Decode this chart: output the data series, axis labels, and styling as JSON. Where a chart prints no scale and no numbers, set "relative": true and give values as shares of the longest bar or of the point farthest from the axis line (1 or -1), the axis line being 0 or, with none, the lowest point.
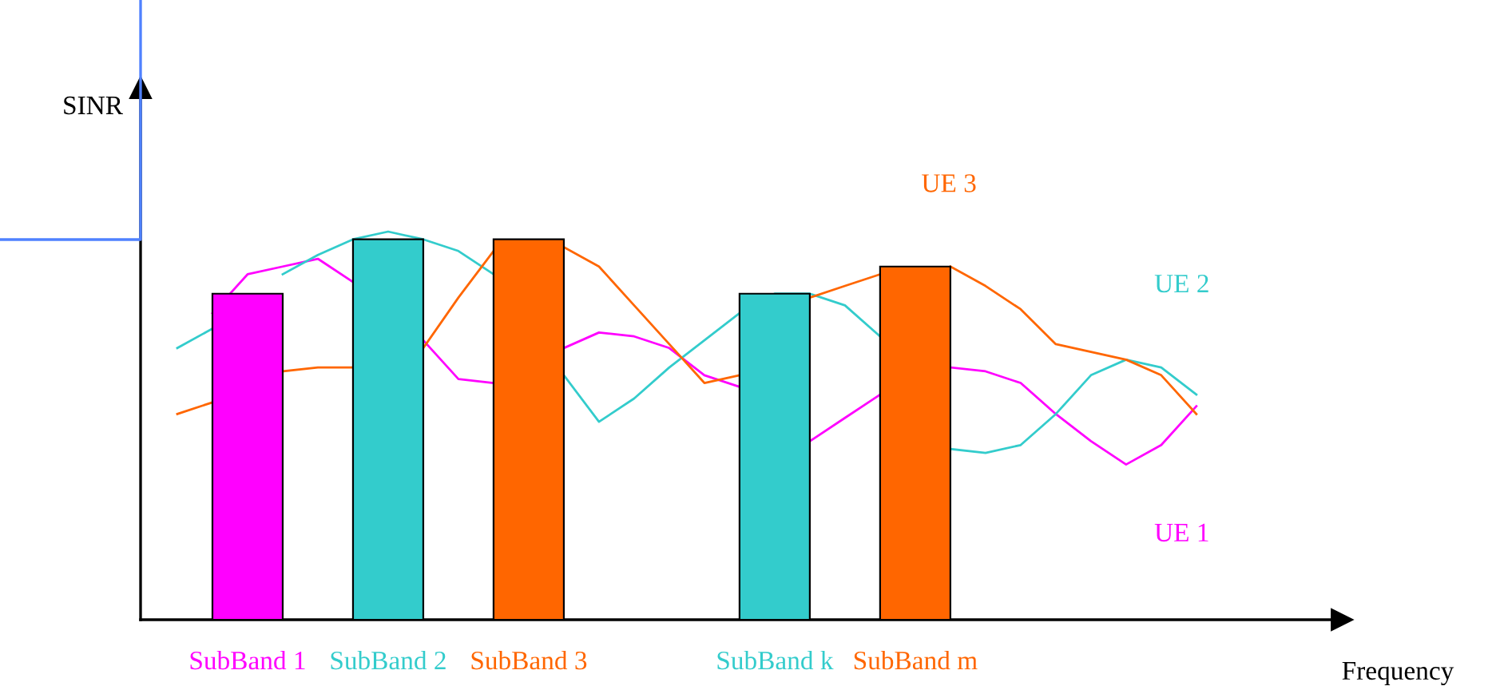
{
  "chart_data": {
    "type": "bar",
    "relative": true,
    "xlabel": "Frequency",
    "ylabel": "SINR",
    "categories": [
      null,
      null,
      "SubBand 1",
      null,
      null,
      null,
      "SubBand 2",
      null,
      null,
      null,
      "SubBand 3",
      null,
      null,
      null,
      null,
      null,
      null,
      "SubBand k",
      null,
      null,
      null,
      "SubBand m",
      null,
      null,
      null,
      null,
      null,
      null,
      null,
      null
    ],
    "grid": false,
    "legend": false,
    "series": [
      {
        "values": [
          null,
          null,
          0.84,
          null,
          null,
          null,
          0.98,
          null,
          null,
          null,
          0.98,
          null,
          null,
          null,
          null,
          null,
          null,
          0.84,
          null,
          null,
          null,
          0.91,
          null,
          null,
          null,
          null,
          null,
          null,
          null,
          null
        ],
        "colors": [
          null,
          null,
          "#ff00ff",
          null,
          null,
          null,
          "#33cccc",
          null,
          null,
          null,
          "#ff6600",
          null,
          null,
          null,
          null,
          null,
          null,
          "#33cccc",
          null,
          null,
          null,
          "#ff6600",
          null,
          null,
          null,
          null,
          null,
          null,
          null,
          null
        ]
      },
      {
        "type": "line",
        "name": "UE 1",
        "color": "#ff00ff",
        "values": [
          null,
          0.79,
          0.89,
          0.91,
          0.93,
          0.87,
          null,
          0.72,
          0.62,
          0.61,
          null,
          0.7,
          0.74,
          0.73,
          0.7,
          0.63,
          0.6,
          null,
          0.46,
          0.52,
          0.58,
          null,
          0.65,
          0.64,
          0.61,
          0.53,
          0.46,
          0.4,
          0.45,
          0.55
        ]
      },
      {
        "type": "line",
        "name": "UE 2",
        "color": "#33cccc",
        "values": [
          0.7,
          0.75,
          null,
          0.89,
          0.94,
          0.98,
          1.0,
          0.98,
          0.95,
          0.89,
          null,
          0.63,
          0.51,
          0.57,
          0.65,
          0.72,
          0.79,
          0.84,
          0.84,
          0.81,
          0.73,
          null,
          0.44,
          0.43,
          0.45,
          0.53,
          0.63,
          0.67,
          0.65,
          0.58
        ]
      },
      {
        "type": "line",
        "name": "UE 3",
        "color": "#ff6600",
        "values": [
          0.53,
          0.56,
          null,
          0.64,
          0.65,
          0.65,
          null,
          0.7,
          0.83,
          0.95,
          null,
          0.96,
          0.91,
          0.81,
          0.71,
          0.61,
          0.63,
          null,
          0.83,
          0.86,
          0.89,
          null,
          0.91,
          0.86,
          0.8,
          0.71,
          0.69,
          0.67,
          0.63,
          0.53
        ]
      }
    ]
  }
}
